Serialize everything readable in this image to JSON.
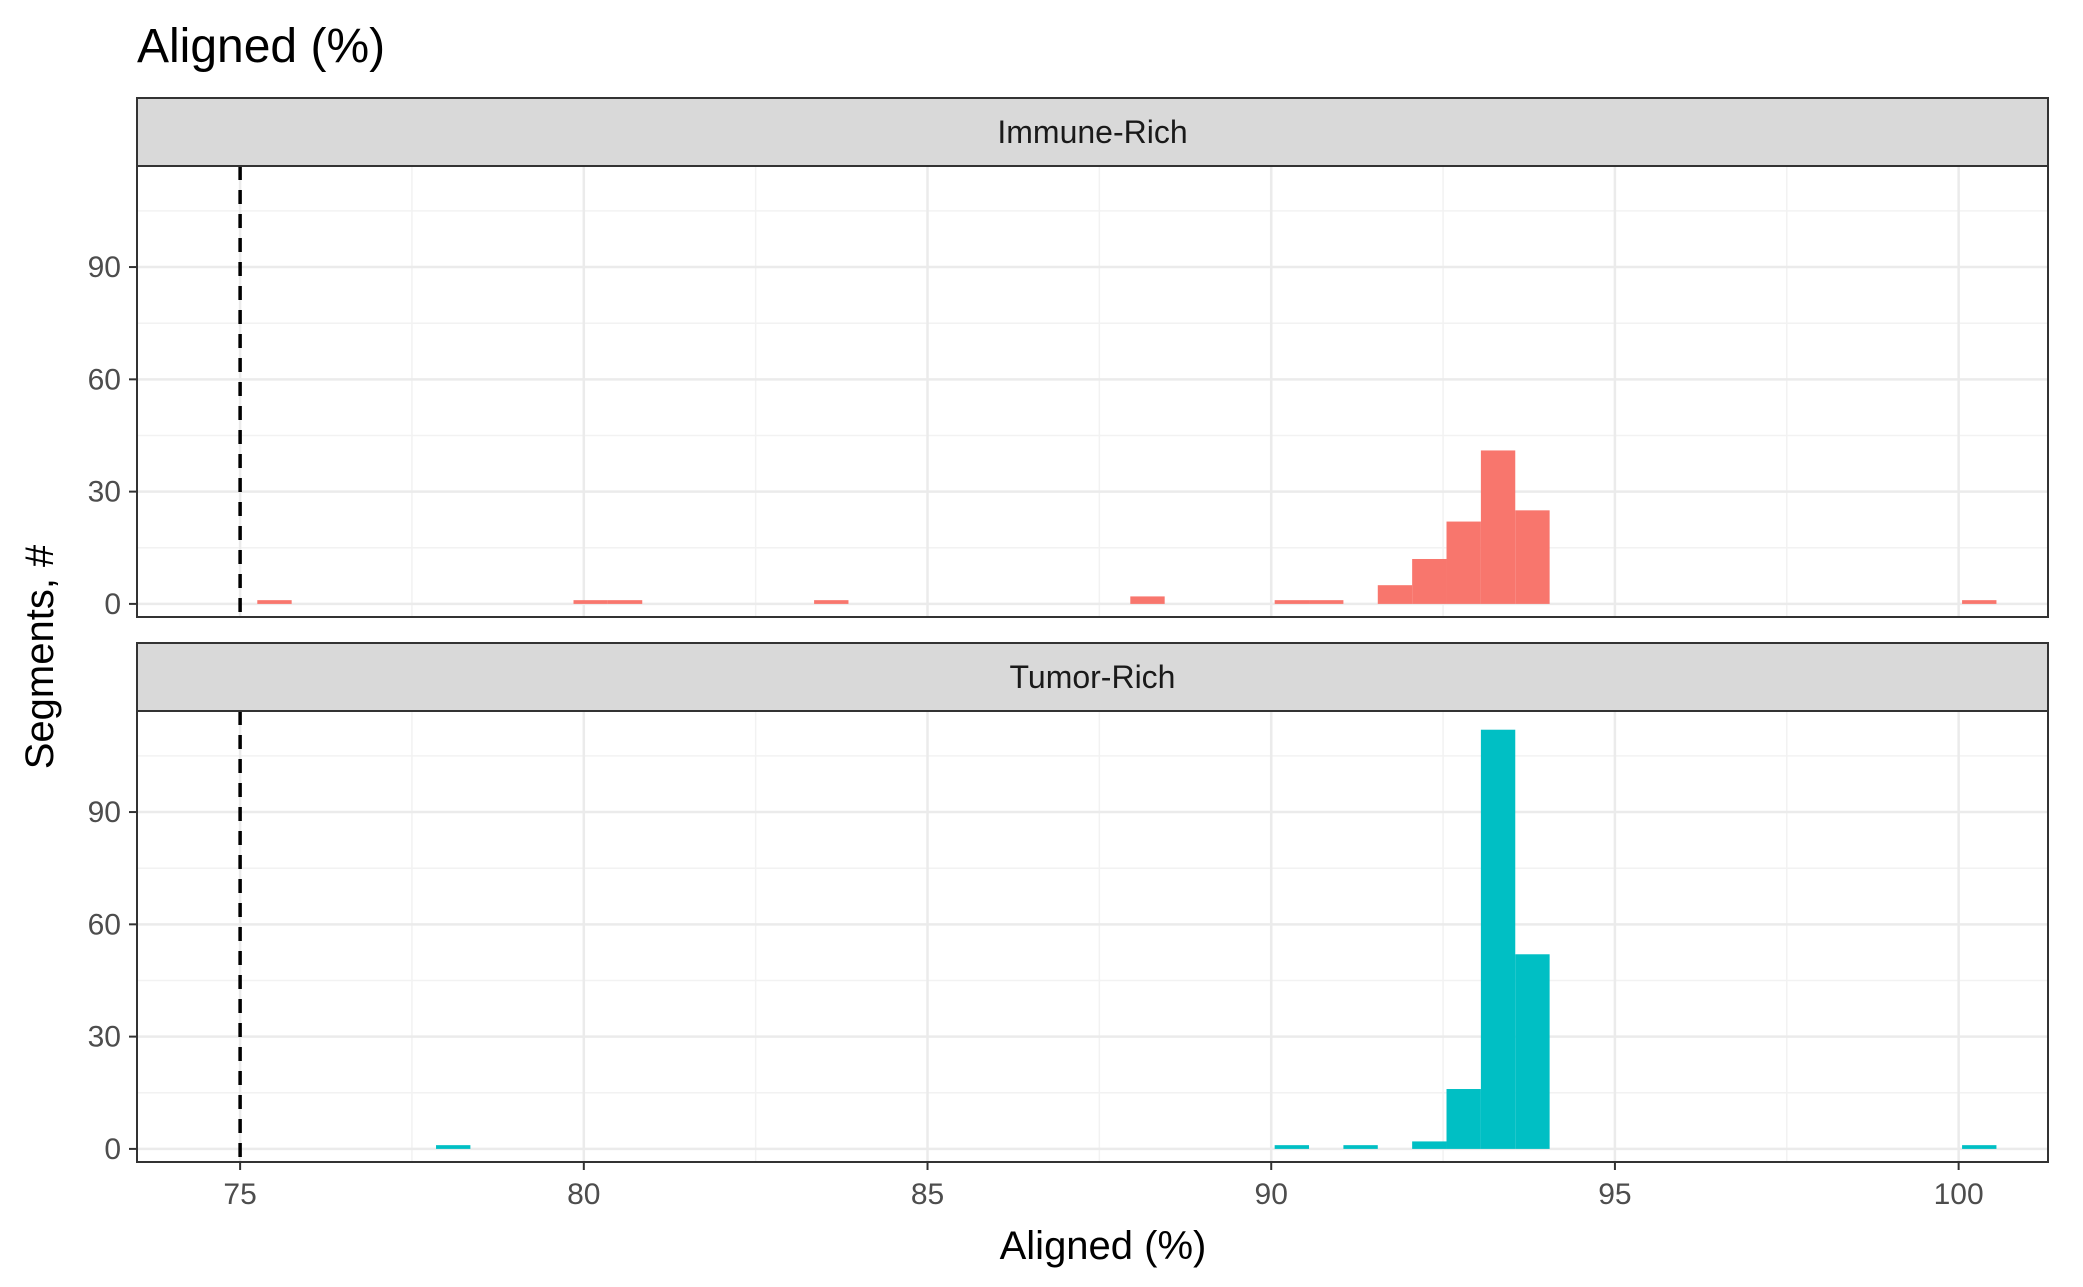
{
  "chart_data": {
    "type": "bar",
    "title": "Aligned (%)",
    "xlabel": "Aligned (%)",
    "ylabel": "Segments, #",
    "xlim": [
      73.5,
      101.3
    ],
    "ylim": [
      -3.5,
      117
    ],
    "x_ticks": [
      75,
      80,
      85,
      90,
      95,
      100
    ],
    "y_ticks": [
      0,
      30,
      60,
      90
    ],
    "bin_width": 0.5,
    "reference_line": {
      "x": 75,
      "style": "dashed",
      "color": "#000000"
    },
    "grid": true,
    "panels": [
      {
        "name": "Immune-Rich",
        "color": "#F8766D",
        "bins": [
          {
            "x": 75.5,
            "count": 1
          },
          {
            "x": 80.1,
            "count": 1
          },
          {
            "x": 80.6,
            "count": 1
          },
          {
            "x": 83.6,
            "count": 1
          },
          {
            "x": 88.2,
            "count": 2
          },
          {
            "x": 90.3,
            "count": 1
          },
          {
            "x": 90.8,
            "count": 1
          },
          {
            "x": 91.8,
            "count": 5
          },
          {
            "x": 92.3,
            "count": 12
          },
          {
            "x": 92.8,
            "count": 22
          },
          {
            "x": 93.3,
            "count": 41
          },
          {
            "x": 93.8,
            "count": 25
          },
          {
            "x": 100.3,
            "count": 1
          }
        ]
      },
      {
        "name": "Tumor-Rich",
        "color": "#00BFC4",
        "bins": [
          {
            "x": 78.1,
            "count": 1
          },
          {
            "x": 90.3,
            "count": 1
          },
          {
            "x": 91.3,
            "count": 1
          },
          {
            "x": 92.3,
            "count": 2
          },
          {
            "x": 92.8,
            "count": 16
          },
          {
            "x": 93.3,
            "count": 112
          },
          {
            "x": 93.8,
            "count": 52
          },
          {
            "x": 100.3,
            "count": 1
          }
        ]
      }
    ]
  }
}
